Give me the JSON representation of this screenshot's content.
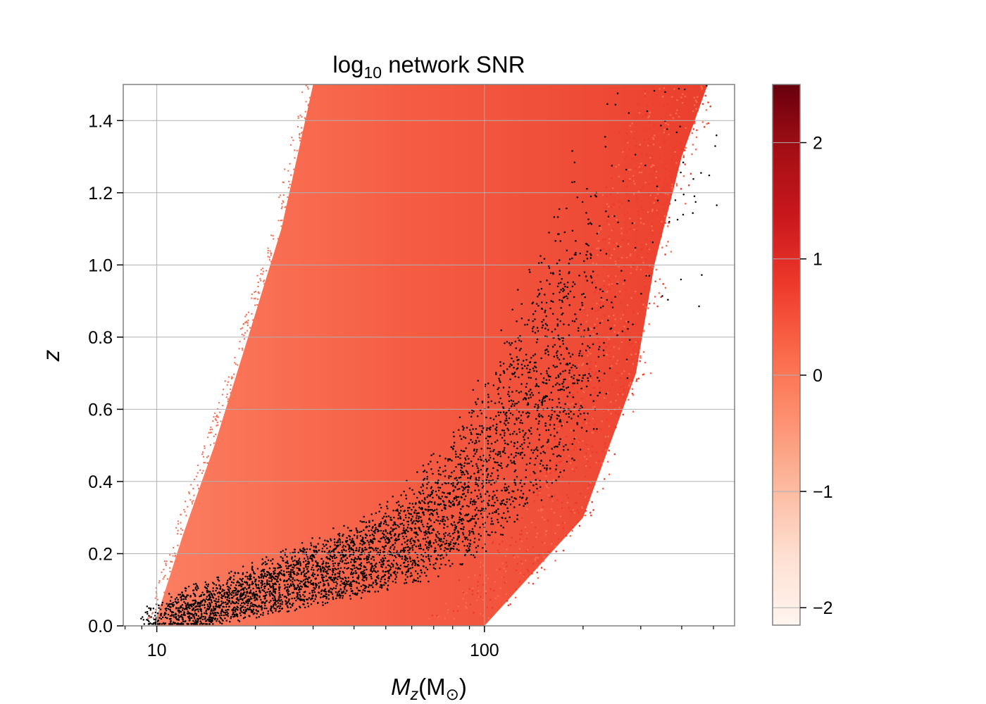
{
  "chart_data": {
    "type": "scatter",
    "title": {
      "main": "log",
      "sub": "10",
      "rest": " network SNR"
    },
    "xlabel": {
      "main": "M",
      "sub": "z",
      "rest": "(M",
      "unit_sub": "⊙",
      "close": ")"
    },
    "ylabel": "z",
    "xscale": "log",
    "xlim": [
      7.9,
      580
    ],
    "ylim": [
      0,
      1.5
    ],
    "x_ticks": [
      10,
      100
    ],
    "x_tick_labels": [
      "10",
      "100"
    ],
    "y_ticks": [
      0,
      0.2,
      0.4,
      0.6,
      0.8,
      1.0,
      1.2,
      1.4
    ],
    "y_tick_labels": [
      "0.0",
      "0.2",
      "0.4",
      "0.6",
      "0.8",
      "1.0",
      "1.2",
      "1.4"
    ],
    "grid": true,
    "colorbar": {
      "label": "",
      "range": [
        -2.15,
        2.5
      ],
      "ticks": [
        -2,
        -1,
        0,
        1,
        2
      ],
      "tick_labels": [
        "−2",
        "−1",
        "0",
        "1",
        "2"
      ],
      "colormap": "Reds",
      "colors": [
        "#fff5f0",
        "#fee0d2",
        "#fcbba1",
        "#fc9272",
        "#fb6a4a",
        "#ef3b2c",
        "#cb181d",
        "#a50f15",
        "#67000d"
      ]
    },
    "series": [
      {
        "description_marker": "colored",
        "lower_boundary": [
          [
            9.8,
            0.0
          ],
          [
            12,
            0.25
          ],
          [
            15,
            0.5
          ],
          [
            19,
            0.8
          ],
          [
            24,
            1.1
          ],
          [
            30,
            1.5
          ]
        ],
        "upper_boundary": [
          [
            100,
            0.0
          ],
          [
            200,
            0.3
          ],
          [
            290,
            0.7
          ],
          [
            330,
            1.0
          ],
          [
            400,
            1.3
          ],
          [
            480,
            1.5
          ]
        ]
      },
      {
        "description_marker": "black",
        "color": "#000000",
        "band": [
          [
            10,
            0.02
          ],
          [
            14,
            0.06
          ],
          [
            20,
            0.1
          ],
          [
            30,
            0.15
          ],
          [
            45,
            0.2
          ],
          [
            60,
            0.26
          ],
          [
            80,
            0.35
          ],
          [
            100,
            0.45
          ],
          [
            130,
            0.6
          ],
          [
            170,
            0.8
          ],
          [
            230,
            1.05
          ],
          [
            320,
            1.3
          ],
          [
            450,
            1.5
          ]
        ]
      }
    ]
  }
}
